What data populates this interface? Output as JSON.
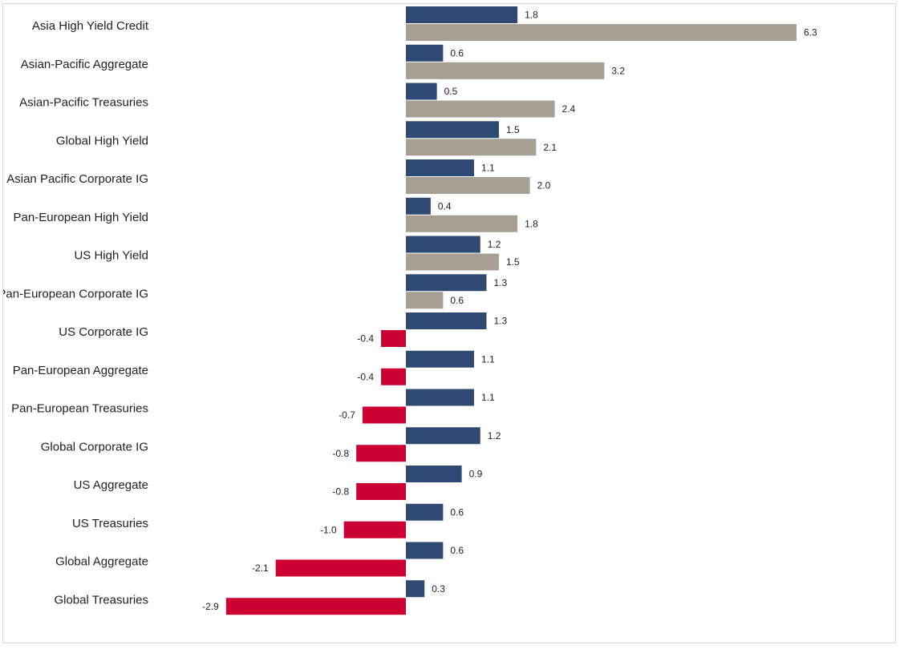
{
  "chart_data": {
    "type": "bar",
    "orientation": "horizontal",
    "categories": [
      "Asia High Yield Credit",
      "Asian-Pacific Aggregate",
      "Asian-Pacific Treasuries",
      "Global High Yield",
      "Asian Pacific Corporate IG",
      "Pan-European High Yield",
      "US High Yield",
      "Pan-European Corporate IG",
      "US Corporate IG",
      "Pan-European Aggregate",
      "Pan-European Treasuries",
      "Global Corporate IG",
      "US Aggregate",
      "US Treasuries",
      "Global Aggregate",
      "Global Treasuries"
    ],
    "series": [
      {
        "values": [
          1.8,
          0.6,
          0.5,
          1.5,
          1.1,
          0.4,
          1.2,
          1.3,
          1.3,
          1.1,
          1.1,
          1.2,
          0.9,
          0.6,
          0.6,
          0.3
        ],
        "color": "#2e4a74"
      },
      {
        "values": [
          6.3,
          3.2,
          2.4,
          2.1,
          2.0,
          1.8,
          1.5,
          0.6,
          -0.4,
          -0.4,
          -0.7,
          -0.8,
          -0.8,
          -1.0,
          -2.1,
          -2.9
        ],
        "color": "#a89f94",
        "negative_color": "#cc0033"
      }
    ],
    "title": "",
    "xlabel": "",
    "ylabel": "",
    "grid": false,
    "legend": "none"
  }
}
